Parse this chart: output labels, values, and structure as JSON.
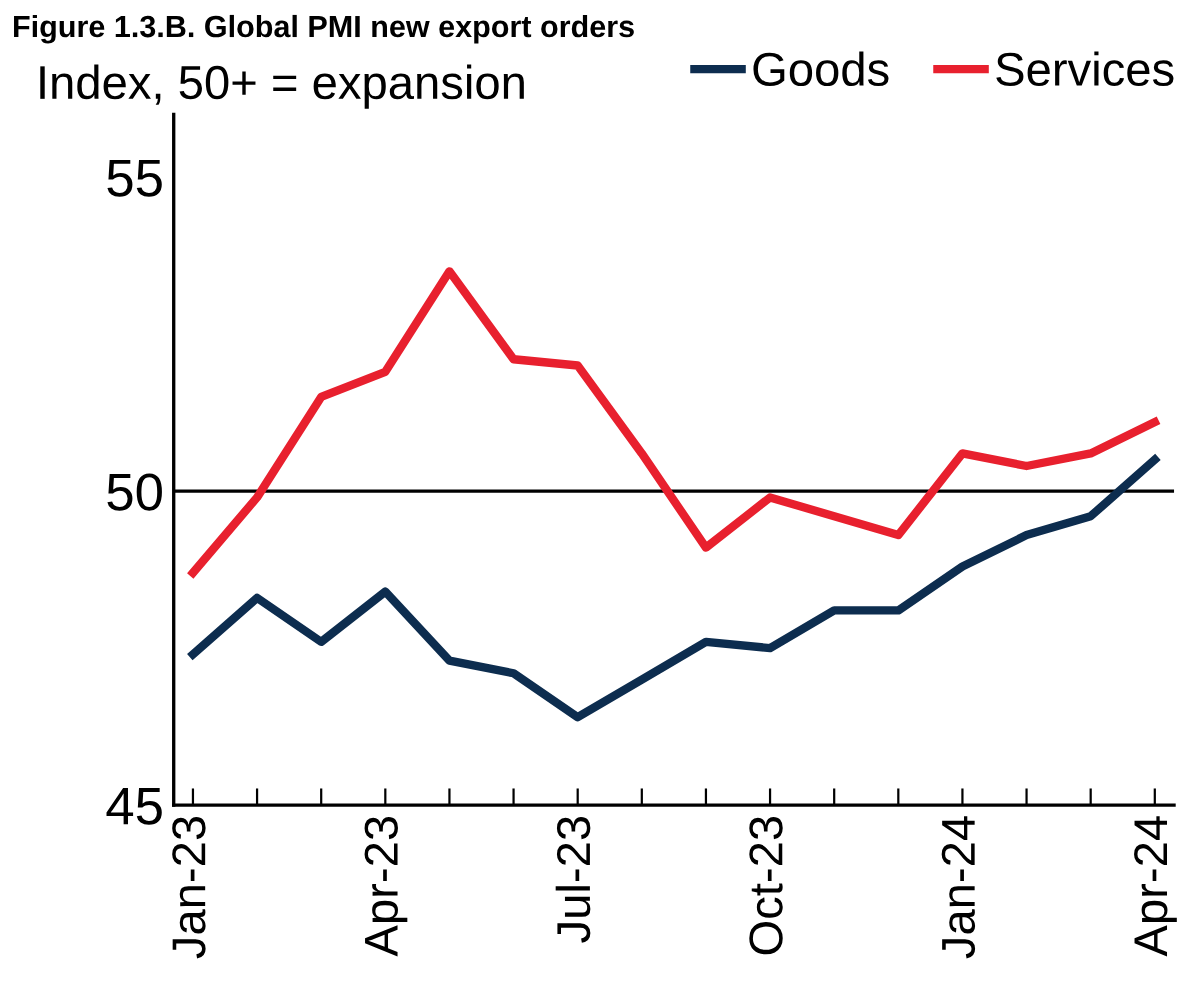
{
  "chart_data": {
    "type": "line",
    "title": "Figure 1.3.B. Global PMI new export orders",
    "subtitle": "Index, 50+ = expansion",
    "categories": [
      "Jan-23",
      null,
      null,
      "Apr-23",
      null,
      null,
      "Jul-23",
      null,
      null,
      "Oct-23",
      null,
      null,
      "Jan-24",
      null,
      null,
      "Apr-24"
    ],
    "series": [
      {
        "name": "Goods",
        "color": "#0d2d4f",
        "values": [
          47.4,
          48.3,
          47.6,
          48.4,
          47.3,
          47.1,
          46.4,
          47.0,
          47.6,
          47.5,
          48.1,
          48.1,
          48.8,
          49.3,
          49.6,
          50.5
        ]
      },
      {
        "name": "Services",
        "color": "#e8202e",
        "values": [
          48.7,
          49.9,
          51.5,
          51.9,
          53.5,
          52.1,
          52.0,
          50.6,
          49.1,
          49.9,
          49.6,
          49.3,
          50.6,
          50.4,
          50.6,
          51.1
        ]
      }
    ],
    "ylim": [
      45,
      56
    ],
    "yticks": [
      45,
      50,
      55
    ],
    "ref_lines": [
      {
        "axis": "y",
        "value": 50,
        "color": "#000000"
      }
    ],
    "grid": false,
    "legend": "top right",
    "marker": "none",
    "line_style": "solid"
  }
}
